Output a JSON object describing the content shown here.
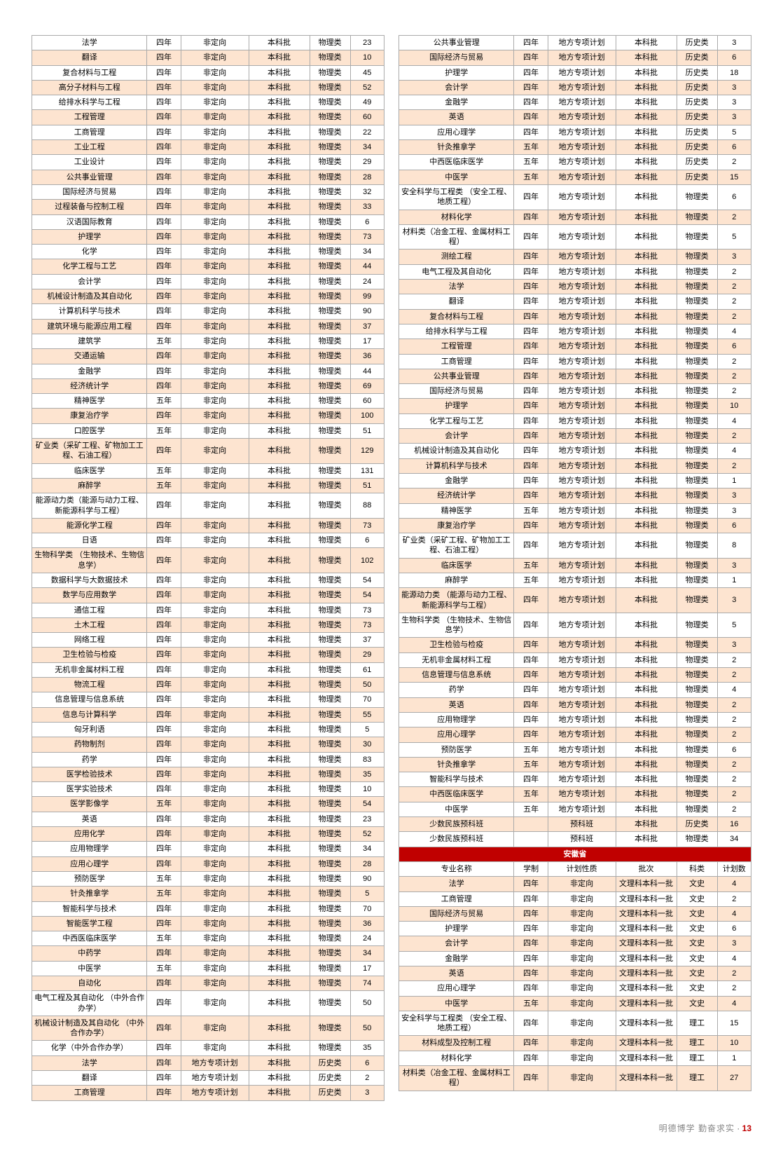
{
  "footer": {
    "motto": "明德博学  勤奋求实",
    "page": "13",
    "sep": " · "
  },
  "leftCols": [
    "c-major",
    "c-dur",
    "c-type",
    "c-batch",
    "c-cat",
    "c-num"
  ],
  "rightCols": [
    "c-major",
    "c-dur",
    "c-type",
    "c-batch",
    "c-cat",
    "c-num"
  ],
  "left": [
    [
      "法学",
      "四年",
      "非定向",
      "本科批",
      "物理类",
      "23"
    ],
    [
      "翻译",
      "四年",
      "非定向",
      "本科批",
      "物理类",
      "10"
    ],
    [
      "复合材料与工程",
      "四年",
      "非定向",
      "本科批",
      "物理类",
      "45"
    ],
    [
      "高分子材料与工程",
      "四年",
      "非定向",
      "本科批",
      "物理类",
      "52"
    ],
    [
      "给排水科学与工程",
      "四年",
      "非定向",
      "本科批",
      "物理类",
      "49"
    ],
    [
      "工程管理",
      "四年",
      "非定向",
      "本科批",
      "物理类",
      "60"
    ],
    [
      "工商管理",
      "四年",
      "非定向",
      "本科批",
      "物理类",
      "22"
    ],
    [
      "工业工程",
      "四年",
      "非定向",
      "本科批",
      "物理类",
      "34"
    ],
    [
      "工业设计",
      "四年",
      "非定向",
      "本科批",
      "物理类",
      "29"
    ],
    [
      "公共事业管理",
      "四年",
      "非定向",
      "本科批",
      "物理类",
      "28"
    ],
    [
      "国际经济与贸易",
      "四年",
      "非定向",
      "本科批",
      "物理类",
      "32"
    ],
    [
      "过程装备与控制工程",
      "四年",
      "非定向",
      "本科批",
      "物理类",
      "33"
    ],
    [
      "汉语国际教育",
      "四年",
      "非定向",
      "本科批",
      "物理类",
      "6"
    ],
    [
      "护理学",
      "四年",
      "非定向",
      "本科批",
      "物理类",
      "73"
    ],
    [
      "化学",
      "四年",
      "非定向",
      "本科批",
      "物理类",
      "34"
    ],
    [
      "化学工程与工艺",
      "四年",
      "非定向",
      "本科批",
      "物理类",
      "44"
    ],
    [
      "会计学",
      "四年",
      "非定向",
      "本科批",
      "物理类",
      "24"
    ],
    [
      "机械设计制造及其自动化",
      "四年",
      "非定向",
      "本科批",
      "物理类",
      "99"
    ],
    [
      "计算机科学与技术",
      "四年",
      "非定向",
      "本科批",
      "物理类",
      "90"
    ],
    [
      "建筑环境与能源应用工程",
      "四年",
      "非定向",
      "本科批",
      "物理类",
      "37"
    ],
    [
      "建筑学",
      "五年",
      "非定向",
      "本科批",
      "物理类",
      "17"
    ],
    [
      "交通运输",
      "四年",
      "非定向",
      "本科批",
      "物理类",
      "36"
    ],
    [
      "金融学",
      "四年",
      "非定向",
      "本科批",
      "物理类",
      "44"
    ],
    [
      "经济统计学",
      "四年",
      "非定向",
      "本科批",
      "物理类",
      "69"
    ],
    [
      "精神医学",
      "五年",
      "非定向",
      "本科批",
      "物理类",
      "60"
    ],
    [
      "康复治疗学",
      "四年",
      "非定向",
      "本科批",
      "物理类",
      "100"
    ],
    [
      "口腔医学",
      "五年",
      "非定向",
      "本科批",
      "物理类",
      "51"
    ],
    [
      "矿业类（采矿工程、矿物加工工程、石油工程）",
      "四年",
      "非定向",
      "本科批",
      "物理类",
      "129"
    ],
    [
      "临床医学",
      "五年",
      "非定向",
      "本科批",
      "物理类",
      "131"
    ],
    [
      "麻醉学",
      "五年",
      "非定向",
      "本科批",
      "物理类",
      "51"
    ],
    [
      "能源动力类（能源与动力工程、新能源科学与工程）",
      "四年",
      "非定向",
      "本科批",
      "物理类",
      "88"
    ],
    [
      "能源化学工程",
      "四年",
      "非定向",
      "本科批",
      "物理类",
      "73"
    ],
    [
      "日语",
      "四年",
      "非定向",
      "本科批",
      "物理类",
      "6"
    ],
    [
      "生物科学类\n（生物技术、生物信息学）",
      "四年",
      "非定向",
      "本科批",
      "物理类",
      "102"
    ],
    [
      "数据科学与大数据技术",
      "四年",
      "非定向",
      "本科批",
      "物理类",
      "54"
    ],
    [
      "数学与应用数学",
      "四年",
      "非定向",
      "本科批",
      "物理类",
      "54"
    ],
    [
      "通信工程",
      "四年",
      "非定向",
      "本科批",
      "物理类",
      "73"
    ],
    [
      "土木工程",
      "四年",
      "非定向",
      "本科批",
      "物理类",
      "73"
    ],
    [
      "网络工程",
      "四年",
      "非定向",
      "本科批",
      "物理类",
      "37"
    ],
    [
      "卫生检验与检疫",
      "四年",
      "非定向",
      "本科批",
      "物理类",
      "29"
    ],
    [
      "无机非金属材料工程",
      "四年",
      "非定向",
      "本科批",
      "物理类",
      "61"
    ],
    [
      "物流工程",
      "四年",
      "非定向",
      "本科批",
      "物理类",
      "50"
    ],
    [
      "信息管理与信息系统",
      "四年",
      "非定向",
      "本科批",
      "物理类",
      "70"
    ],
    [
      "信息与计算科学",
      "四年",
      "非定向",
      "本科批",
      "物理类",
      "55"
    ],
    [
      "匈牙利语",
      "四年",
      "非定向",
      "本科批",
      "物理类",
      "5"
    ],
    [
      "药物制剂",
      "四年",
      "非定向",
      "本科批",
      "物理类",
      "30"
    ],
    [
      "药学",
      "四年",
      "非定向",
      "本科批",
      "物理类",
      "83"
    ],
    [
      "医学检验技术",
      "四年",
      "非定向",
      "本科批",
      "物理类",
      "35"
    ],
    [
      "医学实验技术",
      "四年",
      "非定向",
      "本科批",
      "物理类",
      "10"
    ],
    [
      "医学影像学",
      "五年",
      "非定向",
      "本科批",
      "物理类",
      "54"
    ],
    [
      "英语",
      "四年",
      "非定向",
      "本科批",
      "物理类",
      "23"
    ],
    [
      "应用化学",
      "四年",
      "非定向",
      "本科批",
      "物理类",
      "52"
    ],
    [
      "应用物理学",
      "四年",
      "非定向",
      "本科批",
      "物理类",
      "34"
    ],
    [
      "应用心理学",
      "四年",
      "非定向",
      "本科批",
      "物理类",
      "28"
    ],
    [
      "预防医学",
      "五年",
      "非定向",
      "本科批",
      "物理类",
      "90"
    ],
    [
      "针灸推拿学",
      "五年",
      "非定向",
      "本科批",
      "物理类",
      "5"
    ],
    [
      "智能科学与技术",
      "四年",
      "非定向",
      "本科批",
      "物理类",
      "70"
    ],
    [
      "智能医学工程",
      "四年",
      "非定向",
      "本科批",
      "物理类",
      "36"
    ],
    [
      "中西医临床医学",
      "五年",
      "非定向",
      "本科批",
      "物理类",
      "24"
    ],
    [
      "中药学",
      "四年",
      "非定向",
      "本科批",
      "物理类",
      "34"
    ],
    [
      "中医学",
      "五年",
      "非定向",
      "本科批",
      "物理类",
      "17"
    ],
    [
      "自动化",
      "四年",
      "非定向",
      "本科批",
      "物理类",
      "74"
    ],
    [
      "电气工程及其自动化\n（中外合作办学）",
      "四年",
      "非定向",
      "本科批",
      "物理类",
      "50"
    ],
    [
      "机械设计制造及其自动化\n（中外合作办学）",
      "四年",
      "非定向",
      "本科批",
      "物理类",
      "50"
    ],
    [
      "化学（中外合作办学）",
      "四年",
      "非定向",
      "本科批",
      "物理类",
      "35"
    ],
    [
      "法学",
      "四年",
      "地方专项计划",
      "本科批",
      "历史类",
      "6"
    ],
    [
      "翻译",
      "四年",
      "地方专项计划",
      "本科批",
      "历史类",
      "2"
    ],
    [
      "工商管理",
      "四年",
      "地方专项计划",
      "本科批",
      "历史类",
      "3"
    ]
  ],
  "right": [
    [
      "公共事业管理",
      "四年",
      "地方专项计划",
      "本科批",
      "历史类",
      "3"
    ],
    [
      "国际经济与贸易",
      "四年",
      "地方专项计划",
      "本科批",
      "历史类",
      "6"
    ],
    [
      "护理学",
      "四年",
      "地方专项计划",
      "本科批",
      "历史类",
      "18"
    ],
    [
      "会计学",
      "四年",
      "地方专项计划",
      "本科批",
      "历史类",
      "3"
    ],
    [
      "金融学",
      "四年",
      "地方专项计划",
      "本科批",
      "历史类",
      "3"
    ],
    [
      "英语",
      "四年",
      "地方专项计划",
      "本科批",
      "历史类",
      "3"
    ],
    [
      "应用心理学",
      "四年",
      "地方专项计划",
      "本科批",
      "历史类",
      "5"
    ],
    [
      "针灸推拿学",
      "五年",
      "地方专项计划",
      "本科批",
      "历史类",
      "6"
    ],
    [
      "中西医临床医学",
      "五年",
      "地方专项计划",
      "本科批",
      "历史类",
      "2"
    ],
    [
      "中医学",
      "五年",
      "地方专项计划",
      "本科批",
      "历史类",
      "15"
    ],
    [
      "安全科学与工程类\n（安全工程、地质工程）",
      "四年",
      "地方专项计划",
      "本科批",
      "物理类",
      "6"
    ],
    [
      "材料化学",
      "四年",
      "地方专项计划",
      "本科批",
      "物理类",
      "2"
    ],
    [
      "材料类（冶金工程、金属材料工程）",
      "四年",
      "地方专项计划",
      "本科批",
      "物理类",
      "5"
    ],
    [
      "测绘工程",
      "四年",
      "地方专项计划",
      "本科批",
      "物理类",
      "3"
    ],
    [
      "电气工程及其自动化",
      "四年",
      "地方专项计划",
      "本科批",
      "物理类",
      "2"
    ],
    [
      "法学",
      "四年",
      "地方专项计划",
      "本科批",
      "物理类",
      "2"
    ],
    [
      "翻译",
      "四年",
      "地方专项计划",
      "本科批",
      "物理类",
      "2"
    ],
    [
      "复合材料与工程",
      "四年",
      "地方专项计划",
      "本科批",
      "物理类",
      "2"
    ],
    [
      "给排水科学与工程",
      "四年",
      "地方专项计划",
      "本科批",
      "物理类",
      "4"
    ],
    [
      "工程管理",
      "四年",
      "地方专项计划",
      "本科批",
      "物理类",
      "6"
    ],
    [
      "工商管理",
      "四年",
      "地方专项计划",
      "本科批",
      "物理类",
      "2"
    ],
    [
      "公共事业管理",
      "四年",
      "地方专项计划",
      "本科批",
      "物理类",
      "2"
    ],
    [
      "国际经济与贸易",
      "四年",
      "地方专项计划",
      "本科批",
      "物理类",
      "2"
    ],
    [
      "护理学",
      "四年",
      "地方专项计划",
      "本科批",
      "物理类",
      "10"
    ],
    [
      "化学工程与工艺",
      "四年",
      "地方专项计划",
      "本科批",
      "物理类",
      "4"
    ],
    [
      "会计学",
      "四年",
      "地方专项计划",
      "本科批",
      "物理类",
      "2"
    ],
    [
      "机械设计制造及其自动化",
      "四年",
      "地方专项计划",
      "本科批",
      "物理类",
      "4"
    ],
    [
      "计算机科学与技术",
      "四年",
      "地方专项计划",
      "本科批",
      "物理类",
      "2"
    ],
    [
      "金融学",
      "四年",
      "地方专项计划",
      "本科批",
      "物理类",
      "1"
    ],
    [
      "经济统计学",
      "四年",
      "地方专项计划",
      "本科批",
      "物理类",
      "3"
    ],
    [
      "精神医学",
      "五年",
      "地方专项计划",
      "本科批",
      "物理类",
      "3"
    ],
    [
      "康复治疗学",
      "四年",
      "地方专项计划",
      "本科批",
      "物理类",
      "6"
    ],
    [
      "矿业类（采矿工程、矿物加工工程、石油工程）",
      "四年",
      "地方专项计划",
      "本科批",
      "物理类",
      "8"
    ],
    [
      "临床医学",
      "五年",
      "地方专项计划",
      "本科批",
      "物理类",
      "3"
    ],
    [
      "麻醉学",
      "五年",
      "地方专项计划",
      "本科批",
      "物理类",
      "1"
    ],
    [
      "能源动力类\n（能源与动力工程、新能源科学与工程）",
      "四年",
      "地方专项计划",
      "本科批",
      "物理类",
      "3"
    ],
    [
      "生物科学类\n（生物技术、生物信息学）",
      "四年",
      "地方专项计划",
      "本科批",
      "物理类",
      "5"
    ],
    [
      "卫生检验与检疫",
      "四年",
      "地方专项计划",
      "本科批",
      "物理类",
      "3"
    ],
    [
      "无机非金属材料工程",
      "四年",
      "地方专项计划",
      "本科批",
      "物理类",
      "2"
    ],
    [
      "信息管理与信息系统",
      "四年",
      "地方专项计划",
      "本科批",
      "物理类",
      "2"
    ],
    [
      "药学",
      "四年",
      "地方专项计划",
      "本科批",
      "物理类",
      "4"
    ],
    [
      "英语",
      "四年",
      "地方专项计划",
      "本科批",
      "物理类",
      "2"
    ],
    [
      "应用物理学",
      "四年",
      "地方专项计划",
      "本科批",
      "物理类",
      "2"
    ],
    [
      "应用心理学",
      "四年",
      "地方专项计划",
      "本科批",
      "物理类",
      "2"
    ],
    [
      "预防医学",
      "五年",
      "地方专项计划",
      "本科批",
      "物理类",
      "6"
    ],
    [
      "针灸推拿学",
      "五年",
      "地方专项计划",
      "本科批",
      "物理类",
      "2"
    ],
    [
      "智能科学与技术",
      "四年",
      "地方专项计划",
      "本科批",
      "物理类",
      "2"
    ],
    [
      "中西医临床医学",
      "五年",
      "地方专项计划",
      "本科批",
      "物理类",
      "2"
    ],
    [
      "中医学",
      "五年",
      "地方专项计划",
      "本科批",
      "物理类",
      "2"
    ],
    [
      "少数民族预科班",
      "",
      "预科班",
      "本科批",
      "历史类",
      "16"
    ],
    [
      "少数民族预科班",
      "",
      "预科班",
      "本科批",
      "物理类",
      "34"
    ],
    {
      "section": "安徽省"
    },
    {
      "header": [
        "专业名称",
        "学制",
        "计划性质",
        "批次",
        "科类",
        "计划数"
      ]
    },
    [
      "法学",
      "四年",
      "非定向",
      "文理科本科一批",
      "文史",
      "4"
    ],
    [
      "工商管理",
      "四年",
      "非定向",
      "文理科本科一批",
      "文史",
      "2"
    ],
    [
      "国际经济与贸易",
      "四年",
      "非定向",
      "文理科本科一批",
      "文史",
      "4"
    ],
    [
      "护理学",
      "四年",
      "非定向",
      "文理科本科一批",
      "文史",
      "6"
    ],
    [
      "会计学",
      "四年",
      "非定向",
      "文理科本科一批",
      "文史",
      "3"
    ],
    [
      "金融学",
      "四年",
      "非定向",
      "文理科本科一批",
      "文史",
      "4"
    ],
    [
      "英语",
      "四年",
      "非定向",
      "文理科本科一批",
      "文史",
      "2"
    ],
    [
      "应用心理学",
      "四年",
      "非定向",
      "文理科本科一批",
      "文史",
      "2"
    ],
    [
      "中医学",
      "五年",
      "非定向",
      "文理科本科一批",
      "文史",
      "4"
    ],
    [
      "安全科学与工程类\n（安全工程、地质工程）",
      "四年",
      "非定向",
      "文理科本科一批",
      "理工",
      "15"
    ],
    [
      "材料成型及控制工程",
      "四年",
      "非定向",
      "文理科本科一批",
      "理工",
      "10"
    ],
    [
      "材料化学",
      "四年",
      "非定向",
      "文理科本科一批",
      "理工",
      "1"
    ],
    [
      "材料类（冶金工程、金属材料工程）",
      "四年",
      "非定向",
      "文理科本科一批",
      "理工",
      "27"
    ]
  ]
}
